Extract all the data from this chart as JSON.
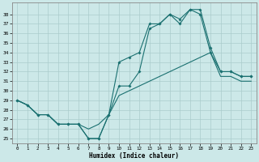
{
  "xlabel": "Humidex (Indice chaleur)",
  "background_color": "#cce8e8",
  "grid_color": "#aacccc",
  "line_color": "#1a7070",
  "xlim": [
    -0.5,
    23.5
  ],
  "ylim": [
    24.5,
    39.2
  ],
  "xticks": [
    0,
    1,
    2,
    3,
    4,
    5,
    6,
    7,
    8,
    9,
    10,
    11,
    12,
    13,
    14,
    15,
    16,
    17,
    18,
    19,
    20,
    21,
    22,
    23
  ],
  "yticks": [
    25,
    26,
    27,
    28,
    29,
    30,
    31,
    32,
    33,
    34,
    35,
    36,
    37,
    38
  ],
  "lA_x": [
    0,
    1,
    2,
    3,
    4,
    5,
    6,
    7,
    8,
    9,
    10,
    11,
    12,
    13,
    14,
    15,
    16,
    17,
    18,
    19,
    20,
    21,
    22,
    23
  ],
  "lA_y": [
    29,
    28.5,
    27.5,
    27.5,
    26.5,
    26.5,
    26.5,
    25,
    25,
    27.5,
    33,
    33.5,
    34,
    37,
    37,
    38,
    37.5,
    38.5,
    38.5,
    34.5,
    32,
    32,
    31.5,
    31.5
  ],
  "lB_x": [
    0,
    1,
    2,
    3,
    4,
    5,
    6,
    7,
    8,
    9,
    10,
    11,
    12,
    13,
    14,
    15,
    16,
    17,
    18,
    19,
    20,
    21,
    22,
    23
  ],
  "lB_y": [
    29,
    28.5,
    27.5,
    27.5,
    26.5,
    26.5,
    26.5,
    25,
    25,
    27.5,
    30.5,
    30.5,
    32,
    36.5,
    37,
    38,
    37,
    38.5,
    38,
    34,
    32,
    32,
    31.5,
    31.5
  ],
  "lC_x": [
    0,
    1,
    2,
    3,
    4,
    5,
    6,
    7,
    8,
    9,
    10,
    11,
    12,
    13,
    14,
    15,
    16,
    17,
    18,
    19,
    20,
    21,
    22,
    23
  ],
  "lC_y": [
    29,
    28.5,
    27.5,
    27.5,
    26.5,
    26.5,
    26.5,
    26,
    26.5,
    27.5,
    29.5,
    30,
    30.5,
    31,
    31.5,
    32,
    32.5,
    33,
    33.5,
    34,
    31.5,
    31.5,
    31,
    31
  ]
}
